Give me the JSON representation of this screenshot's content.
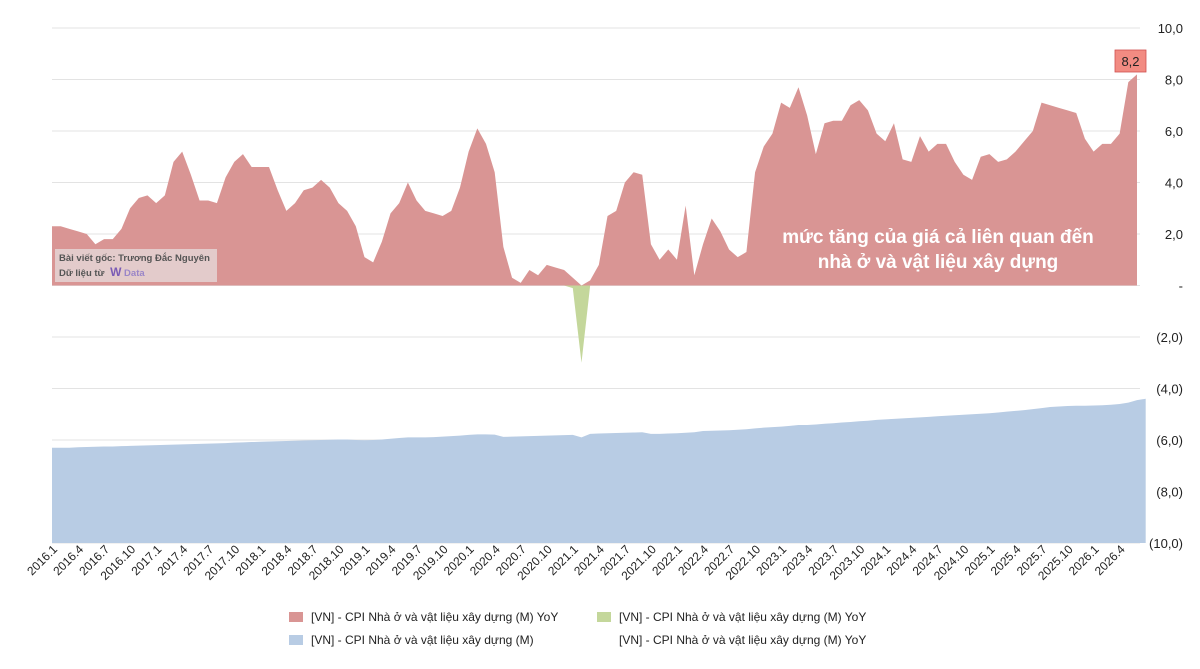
{
  "chart_data": {
    "type": "area",
    "y_axis": {
      "range": [
        -10,
        10
      ],
      "tick_values": [
        10,
        8,
        6,
        4,
        2,
        0,
        -2,
        -4,
        -6,
        -8,
        -10
      ],
      "tick_labels": [
        "10,0",
        "8,0",
        "6,0",
        "4,0",
        "2,0",
        "-",
        "(2,0)",
        "(4,0)",
        "(6,0)",
        "(8,0)",
        "(10,0)"
      ],
      "position": "right"
    },
    "grid": true,
    "x_tick_labels": [
      "2016.1",
      "2016.4",
      "2016.7",
      "2016.10",
      "2017.1",
      "2017.4",
      "2017.7",
      "2017.10",
      "2018.1",
      "2018.4",
      "2018.7",
      "2018.10",
      "2019.1",
      "2019.4",
      "2019.7",
      "2019.10",
      "2020.1",
      "2020.4",
      "2020.7",
      "2020.10",
      "2021.1",
      "2021.4",
      "2021.7",
      "2021.10",
      "2022.1",
      "2022.4",
      "2022.7",
      "2022.10",
      "2023.1",
      "2023.4",
      "2023.7",
      "2023.10",
      "2024.1",
      "2024.4",
      "2024.7",
      "2024.10",
      "2025.1",
      "2025.4",
      "2025.7",
      "2025.10",
      "2026.1",
      "2026.4"
    ],
    "series": [
      {
        "name": "[VN] -  CPI Nhà ở và vật liệu xây dựng  (M) YoY",
        "color": "#d99594",
        "kind": "positive-area",
        "values": [
          2.3,
          2.3,
          2.2,
          2.1,
          2.0,
          1.6,
          1.8,
          1.8,
          2.2,
          3.0,
          3.4,
          3.5,
          3.2,
          3.5,
          4.8,
          5.2,
          4.3,
          3.3,
          3.3,
          3.2,
          4.2,
          4.8,
          5.1,
          4.6,
          4.6,
          4.6,
          3.7,
          2.9,
          3.2,
          3.7,
          3.8,
          4.1,
          3.8,
          3.2,
          2.9,
          2.3,
          1.1,
          0.9,
          1.7,
          2.8,
          3.2,
          4.0,
          3.3,
          2.9,
          2.8,
          2.7,
          2.9,
          3.8,
          5.2,
          6.1,
          5.5,
          4.4,
          1.5,
          0.3,
          0.1,
          0.6,
          0.4,
          0.8,
          0.7,
          0.6,
          0.3,
          0.0,
          0.2,
          0.8,
          2.7,
          2.9,
          4.0,
          4.4,
          4.3,
          1.6,
          1.0,
          1.4,
          1.0,
          3.1,
          0.4,
          1.6,
          2.6,
          2.1,
          1.4,
          1.1,
          1.3,
          4.4,
          5.4,
          5.9,
          7.1,
          6.9,
          7.7,
          6.6,
          5.1,
          6.3,
          6.4,
          6.4,
          7.0,
          7.2,
          6.8,
          5.9,
          5.6,
          6.3,
          4.9,
          4.8,
          5.8,
          5.2,
          5.5,
          5.5,
          4.8,
          4.3,
          4.1,
          5.0,
          5.1,
          4.8,
          4.9,
          5.2,
          5.6,
          6.0,
          7.1,
          7.0,
          6.9,
          6.8,
          6.7,
          5.7,
          5.2,
          5.5,
          5.5,
          5.9,
          7.9,
          8.2
        ]
      },
      {
        "name": "[VN] -  CPI Nhà ở và vật liệu xây dựng  (M) YoY",
        "color": "#c4d79b",
        "kind": "negative-area",
        "values": [
          0,
          0,
          0,
          0,
          0,
          0,
          0,
          0,
          0,
          0,
          0,
          0,
          0,
          0,
          0,
          0,
          0,
          0,
          0,
          0,
          0,
          0,
          0,
          0,
          0,
          0,
          0,
          0,
          0,
          0,
          0,
          0,
          0,
          0,
          0,
          0,
          0,
          0,
          0,
          0,
          0,
          0,
          0,
          0,
          0,
          0,
          0,
          0,
          0,
          0,
          0,
          0,
          0,
          0,
          0,
          0,
          0,
          0,
          0,
          0,
          -0.1,
          -3.0,
          0,
          0,
          0,
          0,
          0,
          0,
          0,
          0,
          0,
          0,
          0,
          0,
          0,
          0,
          0,
          0,
          0,
          0,
          0,
          0,
          0,
          0,
          0,
          0,
          0,
          0,
          0,
          0,
          0,
          0,
          0,
          0,
          0,
          0,
          0,
          0,
          0,
          0,
          0,
          0,
          0,
          0,
          0,
          0,
          0,
          0,
          0,
          0,
          0,
          0,
          0,
          0,
          0,
          0,
          0,
          0,
          0,
          0,
          0,
          0,
          0,
          0,
          0,
          0
        ]
      },
      {
        "name": "[VN] -  CPI Nhà ở và vật liệu xây dựng  (M)",
        "color": "#b8cce4",
        "kind": "bottom-fill",
        "values": [
          -6.3,
          -6.3,
          -6.3,
          -6.28,
          -6.27,
          -6.26,
          -6.25,
          -6.25,
          -6.24,
          -6.23,
          -6.22,
          -6.21,
          -6.2,
          -6.19,
          -6.18,
          -6.17,
          -6.16,
          -6.15,
          -6.14,
          -6.13,
          -6.12,
          -6.1,
          -6.09,
          -6.08,
          -6.07,
          -6.06,
          -6.05,
          -6.04,
          -6.03,
          -6.02,
          -6.01,
          -6.0,
          -5.99,
          -5.98,
          -5.98,
          -6.0,
          -6.01,
          -6.0,
          -5.98,
          -5.95,
          -5.92,
          -5.9,
          -5.9,
          -5.9,
          -5.89,
          -5.87,
          -5.85,
          -5.83,
          -5.8,
          -5.78,
          -5.78,
          -5.79,
          -5.88,
          -5.87,
          -5.86,
          -5.85,
          -5.84,
          -5.83,
          -5.82,
          -5.81,
          -5.8,
          -5.9,
          -5.76,
          -5.75,
          -5.74,
          -5.73,
          -5.72,
          -5.71,
          -5.7,
          -5.76,
          -5.76,
          -5.75,
          -5.74,
          -5.72,
          -5.7,
          -5.65,
          -5.64,
          -5.63,
          -5.62,
          -5.6,
          -5.58,
          -5.55,
          -5.52,
          -5.5,
          -5.48,
          -5.45,
          -5.42,
          -5.42,
          -5.4,
          -5.37,
          -5.35,
          -5.32,
          -5.3,
          -5.27,
          -5.25,
          -5.22,
          -5.2,
          -5.18,
          -5.16,
          -5.14,
          -5.12,
          -5.1,
          -5.08,
          -5.06,
          -5.04,
          -5.02,
          -5.0,
          -4.98,
          -4.96,
          -4.93,
          -4.9,
          -4.87,
          -4.84,
          -4.8,
          -4.76,
          -4.72,
          -4.7,
          -4.68,
          -4.67,
          -4.67,
          -4.66,
          -4.65,
          -4.63,
          -4.6,
          -4.55,
          -4.45,
          -4.4
        ]
      },
      {
        "name": "[VN] -  CPI Nhà ở và vật liệu xây dựng  (M) YoY",
        "color": "#ffffff",
        "kind": "legend-only",
        "values": []
      }
    ],
    "annotations": [
      {
        "text": "mức tăng của giá cả liên quan đến",
        "x_index": 92,
        "y": 2.0
      },
      {
        "text": "nhà ở và vật liệu xây dựng",
        "x_index": 92,
        "y": 0.9
      }
    ],
    "last_value_label": "8,2",
    "legend_placement": "bottom"
  },
  "credit": {
    "line1": "Bài viết gốc: Trương Đắc Nguyên",
    "line2_prefix": "Dữ liệu từ",
    "logo_letter": "W",
    "logo_text": "Data"
  }
}
